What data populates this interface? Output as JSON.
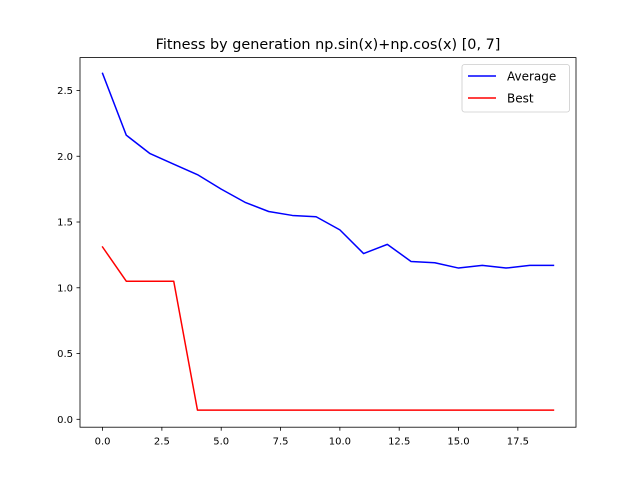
{
  "chart_data": {
    "type": "line",
    "title": "Fitness by generation np.sin(x)+np.cos(x) [0, 7]",
    "xlabel": "",
    "ylabel": "",
    "xlim": [
      -0.95,
      19.95
    ],
    "ylim": [
      -0.06,
      2.75
    ],
    "grid": false,
    "legend_position": "top-right",
    "xticks": [
      0,
      2.5,
      5,
      7.5,
      10,
      12.5,
      15,
      17.5
    ],
    "xtick_labels": [
      "0.0",
      "2.5",
      "5.0",
      "7.5",
      "10.0",
      "12.5",
      "15.0",
      "17.5"
    ],
    "yticks": [
      0,
      0.5,
      1,
      1.5,
      2,
      2.5
    ],
    "ytick_labels": [
      "0.0",
      "0.5",
      "1.0",
      "1.5",
      "2.0",
      "2.5"
    ],
    "x": [
      0,
      1,
      2,
      3,
      4,
      5,
      6,
      7,
      8,
      9,
      10,
      11,
      12,
      13,
      14,
      15,
      16,
      17,
      18,
      19
    ],
    "series": [
      {
        "name": "Average",
        "color": "#0000ff",
        "values": [
          2.63,
          2.16,
          2.02,
          1.94,
          1.86,
          1.75,
          1.65,
          1.58,
          1.55,
          1.54,
          1.44,
          1.26,
          1.33,
          1.2,
          1.19,
          1.15,
          1.17,
          1.15,
          1.17,
          1.17
        ]
      },
      {
        "name": "Best",
        "color": "#ff0000",
        "values": [
          1.31,
          1.05,
          1.05,
          1.05,
          0.07,
          0.07,
          0.07,
          0.07,
          0.07,
          0.07,
          0.07,
          0.07,
          0.07,
          0.07,
          0.07,
          0.07,
          0.07,
          0.07,
          0.07,
          0.07
        ]
      }
    ]
  }
}
